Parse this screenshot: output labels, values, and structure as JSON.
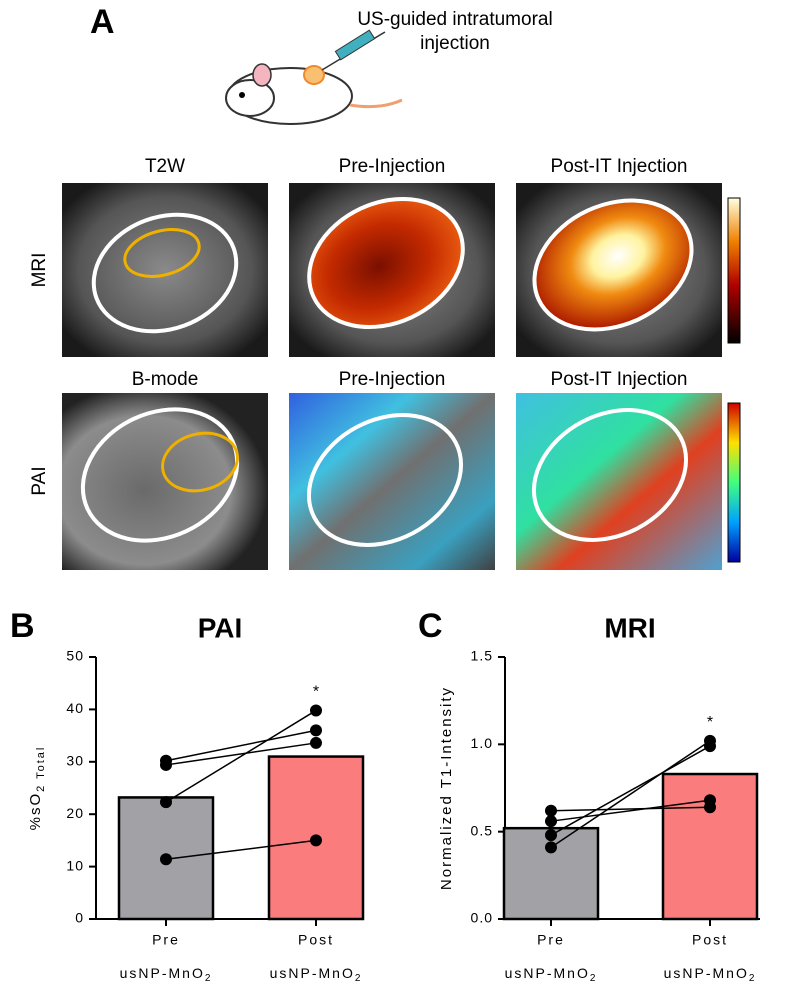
{
  "figure": {
    "panel_a": "A",
    "caption": [
      "US-guided intratumoral",
      "injection"
    ],
    "rows": [
      {
        "label": "MRI",
        "titles": [
          "T2W",
          "Pre-Injection",
          "Post-IT Injection"
        ]
      },
      {
        "label": "PAI",
        "titles": [
          "B-mode",
          "Pre-Injection",
          "Post-IT Injection"
        ]
      }
    ]
  },
  "chart_data": [
    {
      "type": "bar",
      "panel": "B",
      "title": "PAI",
      "ylabel": {
        "text": "%sO",
        "subscript": "2 Total"
      },
      "categories": [
        "Pre",
        "Post"
      ],
      "category_sublabel": {
        "text": "usNP-MnO",
        "subscript": "2"
      },
      "values": [
        23.2,
        31
      ],
      "colors": [
        "#a1a1a6",
        "#fb7c7c"
      ],
      "pairs": [
        [
          30.2,
          36
        ],
        [
          29.4,
          33.6
        ],
        [
          22.3,
          39.8
        ],
        [
          11.4,
          15
        ]
      ],
      "annotation": "*",
      "ylim": [
        0,
        50
      ],
      "yticks": [
        0,
        10,
        20,
        30,
        40,
        50
      ]
    },
    {
      "type": "bar",
      "panel": "C",
      "title": "MRI",
      "ylabel": {
        "text": "Normalized T1-Intensity"
      },
      "categories": [
        "Pre",
        "Post"
      ],
      "category_sublabel": {
        "text": "usNP-MnO",
        "subscript": "2"
      },
      "values": [
        0.52,
        0.83
      ],
      "colors": [
        "#a1a1a6",
        "#fb7c7c"
      ],
      "pairs": [
        [
          0.41,
          1.02
        ],
        [
          0.48,
          0.99
        ],
        [
          0.56,
          0.68
        ],
        [
          0.62,
          0.64
        ]
      ],
      "annotation": "*",
      "ylim": [
        0,
        1.5
      ],
      "yticks": [
        {
          "value": 0,
          "label": "0.0"
        },
        0.5,
        {
          "value": 1,
          "label": "1.0"
        },
        {
          "value": 1.5,
          "label": "1.5"
        }
      ]
    }
  ]
}
